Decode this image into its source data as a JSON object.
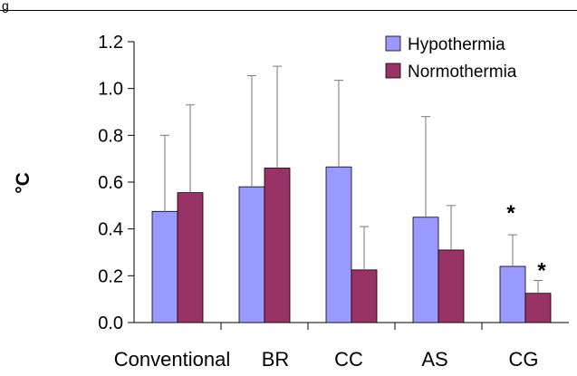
{
  "header": {
    "figure_label": "g"
  },
  "chart_data": {
    "type": "bar",
    "ylabel": "°C",
    "ylim": [
      0,
      1.2
    ],
    "yticks": [
      "0.0",
      "0.2",
      "0.4",
      "0.6",
      "0.8",
      "1.0",
      "1.2"
    ],
    "categories": [
      "Conventional",
      "BR",
      "CC",
      "AS",
      "CG"
    ],
    "legend_position": "top-right",
    "series": [
      {
        "name": "Hypothermia",
        "color": "#9999ff",
        "values": [
          0.475,
          0.58,
          0.665,
          0.45,
          0.24
        ],
        "errors": [
          0.325,
          0.475,
          0.37,
          0.43,
          0.135
        ],
        "significance": [
          "",
          "",
          "",
          "",
          "*"
        ]
      },
      {
        "name": "Normothermia",
        "color": "#993366",
        "values": [
          0.555,
          0.66,
          0.225,
          0.31,
          0.125
        ],
        "errors": [
          0.375,
          0.435,
          0.185,
          0.19,
          0.055
        ],
        "significance": [
          "",
          "",
          "",
          "",
          "*"
        ]
      }
    ]
  }
}
